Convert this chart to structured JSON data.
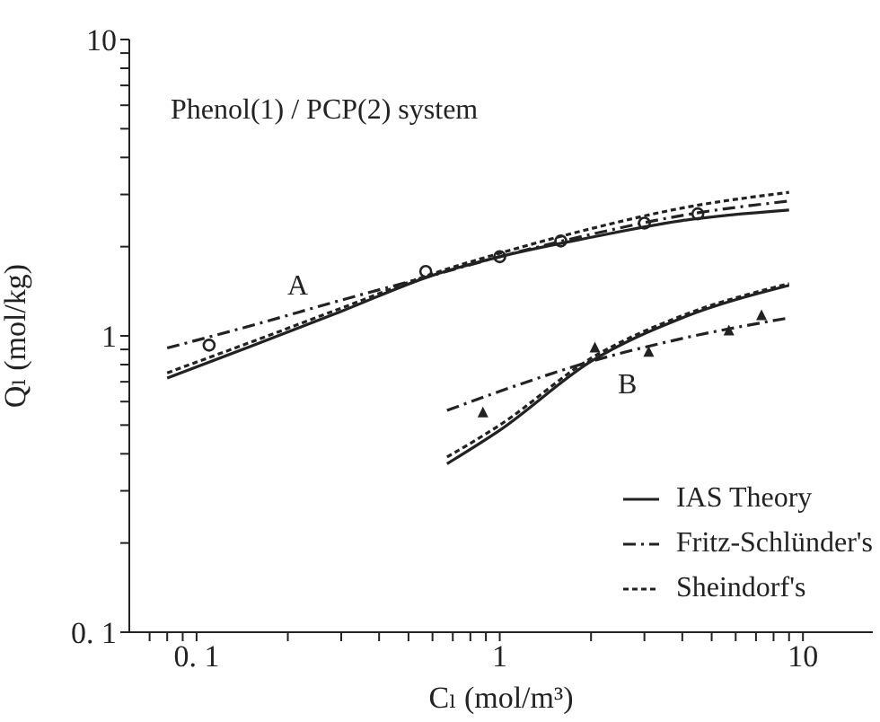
{
  "chart_data": {
    "type": "line",
    "xlabel": "Cₗ (mol/m³)",
    "ylabel": "Qₗ (mol/kg)",
    "log": "xy",
    "grid": false,
    "legend": "bottom right",
    "annotations": [
      "Phenol(1) / PCP(2) system",
      "A",
      "B"
    ],
    "xlim": [
      0.06,
      17
    ],
    "ylim": [
      0.1,
      10
    ],
    "xticks": [
      {
        "value": 0.07,
        "label": null
      },
      {
        "value": 0.08,
        "label": null
      },
      {
        "value": 0.09,
        "label": null
      },
      {
        "value": 0.1,
        "label": "0. 1"
      },
      {
        "value": 0.2,
        "label": null
      },
      {
        "value": 0.3,
        "label": null
      },
      {
        "value": 0.4,
        "label": null
      },
      {
        "value": 0.5,
        "label": null
      },
      {
        "value": 0.6,
        "label": null
      },
      {
        "value": 0.7,
        "label": null
      },
      {
        "value": 0.8,
        "label": null
      },
      {
        "value": 0.9,
        "label": null
      },
      1,
      {
        "value": 2,
        "label": null
      },
      {
        "value": 3,
        "label": null
      },
      {
        "value": 4,
        "label": null
      },
      {
        "value": 5,
        "label": null
      },
      {
        "value": 6,
        "label": null
      },
      {
        "value": 7,
        "label": null
      },
      {
        "value": 8,
        "label": null
      },
      {
        "value": 9,
        "label": null
      },
      10
    ],
    "yticks": [
      {
        "value": 0.1,
        "label": "0. 1"
      },
      {
        "value": 0.2,
        "label": null
      },
      {
        "value": 0.3,
        "label": null
      },
      {
        "value": 0.4,
        "label": null
      },
      {
        "value": 0.5,
        "label": null
      },
      {
        "value": 0.6,
        "label": null
      },
      {
        "value": 0.7,
        "label": null
      },
      {
        "value": 0.8,
        "label": null
      },
      {
        "value": 0.9,
        "label": null
      },
      1,
      {
        "value": 2,
        "label": null
      },
      {
        "value": 3,
        "label": null
      },
      {
        "value": 4,
        "label": null
      },
      {
        "value": 5,
        "label": null
      },
      {
        "value": 6,
        "label": null
      },
      {
        "value": 7,
        "label": null
      },
      {
        "value": 8,
        "label": null
      },
      {
        "value": 9,
        "label": null
      },
      10
    ],
    "series": [
      {
        "name": "IAS Theory",
        "color": "#222222",
        "line_style": "solid",
        "marker": "none",
        "x": [
          0.08,
          0.15,
          0.3,
          0.6,
          1,
          2,
          4,
          9
        ],
        "values": [
          0.72,
          0.92,
          1.21,
          1.6,
          1.85,
          2.15,
          2.45,
          2.66
        ]
      },
      {
        "name": "Fritz-Schlünder's",
        "color": "#222222",
        "line_style": "dashed",
        "marker": "none",
        "x": [
          0.08,
          0.15,
          0.3,
          0.6,
          1,
          2,
          4,
          9
        ],
        "values": [
          0.91,
          1.08,
          1.32,
          1.6,
          1.85,
          2.2,
          2.55,
          2.85
        ]
      },
      {
        "name": "Sheindorf's",
        "color": "#222222",
        "line_style": "dotted",
        "marker": "none",
        "x": [
          0.08,
          0.15,
          0.3,
          0.6,
          1,
          2,
          4,
          9
        ],
        "values": [
          0.75,
          0.95,
          1.24,
          1.62,
          1.9,
          2.3,
          2.7,
          3.05
        ]
      },
      {
        "color": "#222222",
        "line_style": "solid",
        "marker": "none",
        "x": [
          0.67,
          1,
          2,
          4,
          9
        ],
        "values": [
          0.37,
          0.48,
          0.82,
          1.15,
          1.48
        ]
      },
      {
        "color": "#222222",
        "line_style": "dashed",
        "marker": "none",
        "x": [
          0.67,
          1,
          2,
          4,
          9
        ],
        "values": [
          0.56,
          0.65,
          0.82,
          0.98,
          1.15
        ]
      },
      {
        "color": "#222222",
        "line_style": "dotted",
        "marker": "none",
        "x": [
          0.67,
          1,
          2,
          4,
          9
        ],
        "values": [
          0.39,
          0.5,
          0.84,
          1.17,
          1.5
        ]
      },
      {
        "type": "scatter",
        "color": "#222222",
        "marker": "circle",
        "x": [
          0.11,
          0.57,
          1.0,
          1.59,
          3.0,
          4.5
        ],
        "values": [
          0.93,
          1.65,
          1.85,
          2.09,
          2.4,
          2.58
        ]
      },
      {
        "type": "scatter",
        "color": "#222222",
        "marker": "triangle",
        "x": [
          0.88,
          2.06,
          3.1,
          5.7,
          7.3
        ],
        "values": [
          0.55,
          0.91,
          0.88,
          1.04,
          1.17
        ]
      }
    ]
  }
}
